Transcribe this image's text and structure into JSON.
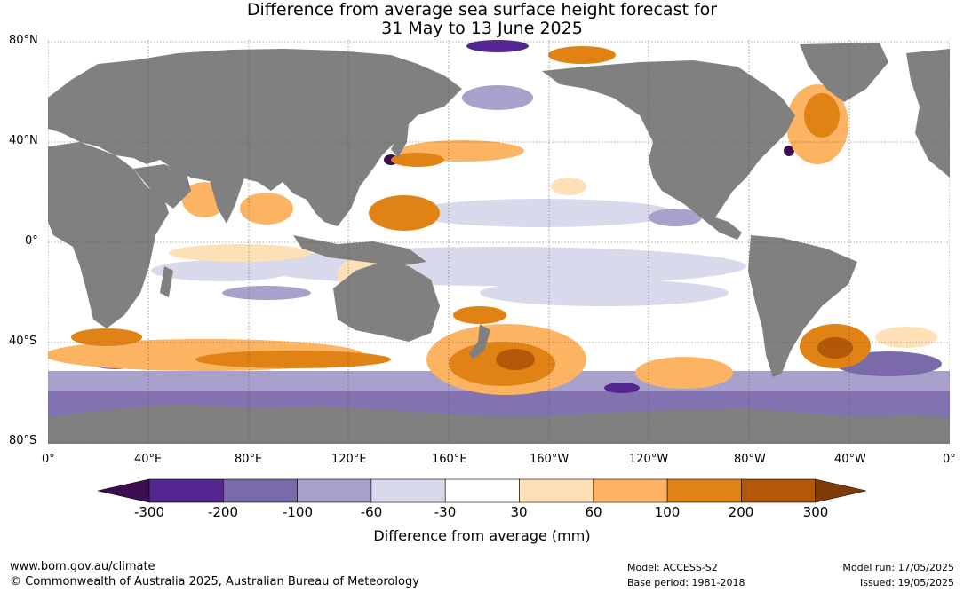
{
  "title_line1": "Difference from average sea surface height forecast for",
  "title_line2": "31 May to 13 June 2025",
  "lat_labels": [
    "80°N",
    "40°N",
    "0°",
    "40°S",
    "80°S"
  ],
  "lon_labels": [
    "0°",
    "40°E",
    "80°E",
    "120°E",
    "160°E",
    "160°W",
    "120°W",
    "80°W",
    "40°W",
    "0°"
  ],
  "colorbar": {
    "title": "Difference from average (mm)",
    "tick_labels": [
      "-300",
      "-200",
      "-100",
      "-60",
      "-30",
      "30",
      "60",
      "100",
      "200",
      "300"
    ],
    "colors": [
      "#3b0f4f",
      "#54278f",
      "#7b6aaa",
      "#a8a1cb",
      "#d9d9ec",
      "#ffffff",
      "#fee0b6",
      "#fdb462",
      "#e08214",
      "#b35806",
      "#7f3b08"
    ]
  },
  "colors": {
    "land": "#808080",
    "ocean": "#ffffff"
  },
  "footer": {
    "url": "www.bom.gov.au/climate",
    "copyright": "© Commonwealth of Australia 2025, Australian Bureau of Meteorology",
    "model": "Model: ACCESS-S2",
    "base_period": "Base period: 1981-2018",
    "model_run": "Model run: 17/05/2025",
    "issued": "Issued: 19/05/2025"
  }
}
